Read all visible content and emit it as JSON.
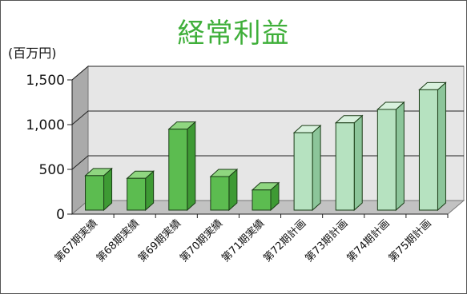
{
  "colors": {
    "title": "#3faf3a",
    "actual_front": "#5cbc50",
    "actual_top": "#8fd680",
    "actual_side": "#3e9a34",
    "plan_front": "#b6e2c0",
    "plan_top": "#d8f1dd",
    "plan_side": "#8cc59a",
    "back_wall": "#e6e6e6",
    "left_wall": "#aaaaaa",
    "floor": "#c2c2c2"
  },
  "chart_data": {
    "type": "bar",
    "title": "経常利益",
    "ylabel": "(百万円)",
    "xlabel": "",
    "ylim": [
      0,
      1500
    ],
    "yticks": [
      {
        "value": 0,
        "label": "0"
      },
      {
        "value": 500,
        "label": "500"
      },
      {
        "value": 1000,
        "label": "1,000"
      },
      {
        "value": 1500,
        "label": "1,500"
      }
    ],
    "grid": true,
    "categories": [
      "第67期実績",
      "第68期実績",
      "第69期実績",
      "第70期実績",
      "第71期実績",
      "第72期計画",
      "第73期計画",
      "第74期計画",
      "第75期計画"
    ],
    "values": [
      430,
      400,
      950,
      420,
      270,
      910,
      1020,
      1170,
      1390
    ],
    "kinds": [
      "actual",
      "actual",
      "actual",
      "actual",
      "actual",
      "plan",
      "plan",
      "plan",
      "plan"
    ]
  }
}
